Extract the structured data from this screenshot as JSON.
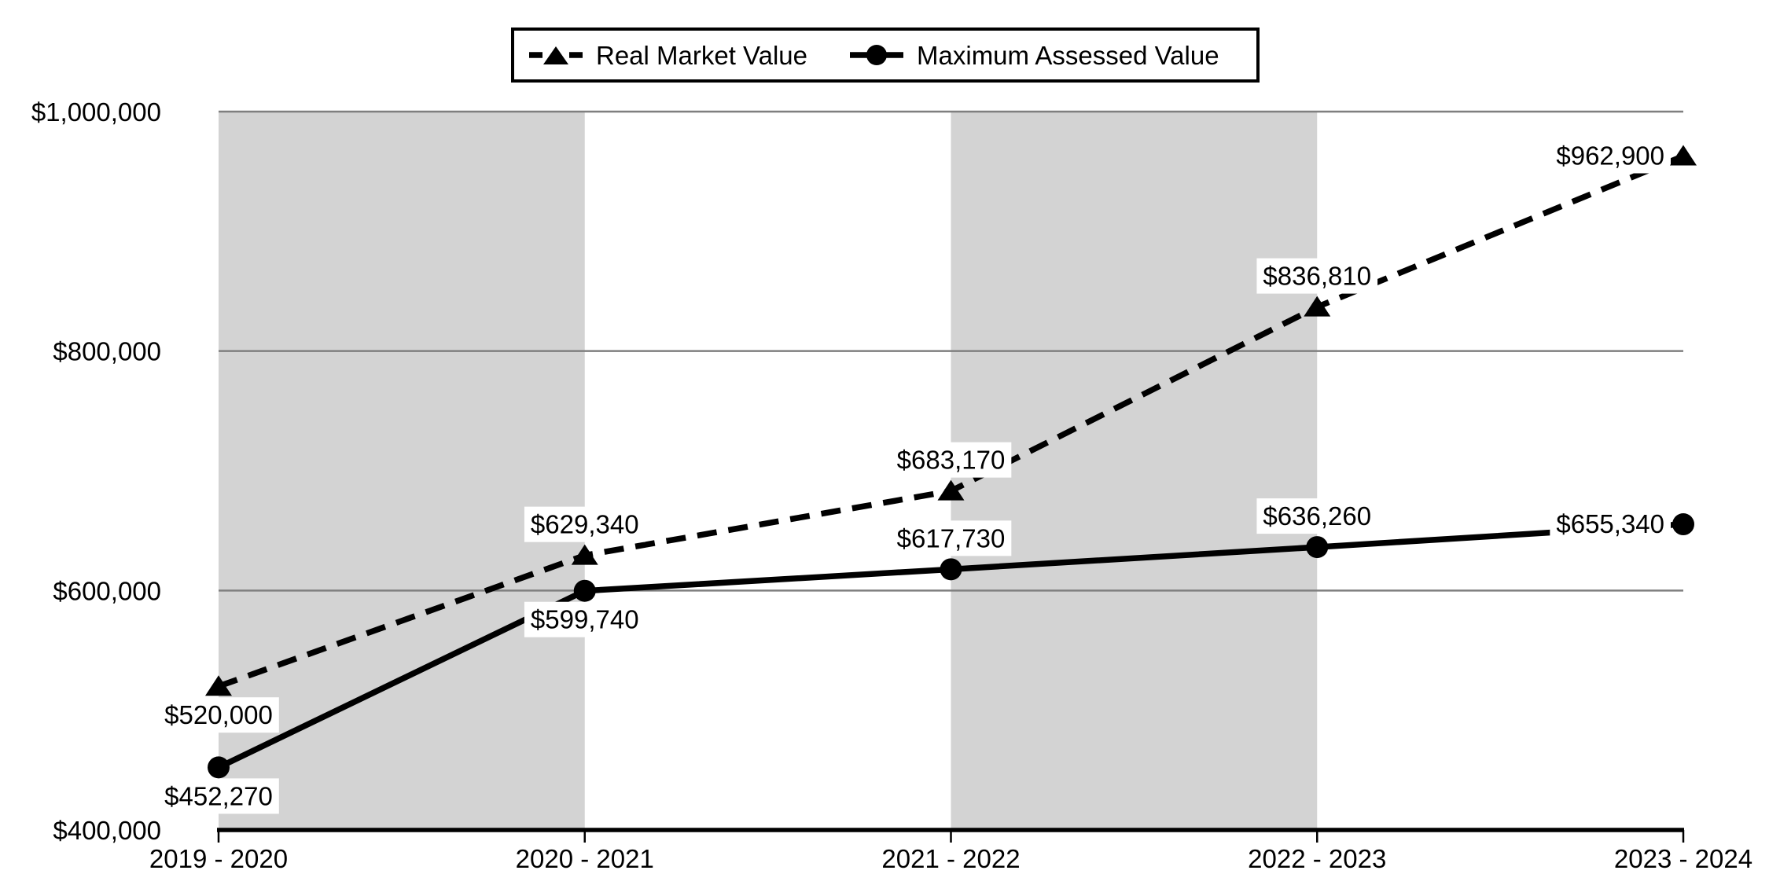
{
  "chart_data": {
    "type": "line",
    "title": "",
    "xlabel": "",
    "ylabel": "",
    "categories": [
      "2019 - 2020",
      "2020 - 2021",
      "2021 - 2022",
      "2022 - 2023",
      "2023 - 2024"
    ],
    "ylim": [
      400000,
      1000000
    ],
    "yticks": {
      "values": [
        400000,
        600000,
        800000,
        1000000
      ],
      "labels": [
        "$400,000",
        "$600,000",
        "$800,000",
        "$1,000,000"
      ]
    },
    "grid": "horizontal",
    "legend_position": "top-center",
    "series": [
      {
        "name": "Real Market Value",
        "line_style": "dashed",
        "marker": "triangle",
        "color": "#000000",
        "values": [
          520000,
          629340,
          683170,
          836810,
          962900
        ],
        "labels": [
          "$520,000",
          "$629,340",
          "$683,170",
          "$836,810",
          "$962,900"
        ],
        "label_positions": [
          "below",
          "above",
          "above",
          "above",
          "left"
        ]
      },
      {
        "name": "Maximum Assessed Value",
        "line_style": "solid",
        "marker": "circle",
        "color": "#000000",
        "values": [
          452270,
          599740,
          617730,
          636260,
          655340
        ],
        "labels": [
          "$452,270",
          "$599,740",
          "$617,730",
          "$636,260",
          "$655,340"
        ],
        "label_positions": [
          "below",
          "below",
          "above",
          "above",
          "left"
        ]
      }
    ],
    "shaded_bands": [
      [
        0,
        1
      ],
      [
        2,
        3
      ]
    ],
    "colors": {
      "band": "#d3d3d3",
      "gridline": "#7f7f7f",
      "axis": "#000000",
      "text": "#000000",
      "label_bg": "#ffffff",
      "background": "#ffffff"
    }
  }
}
